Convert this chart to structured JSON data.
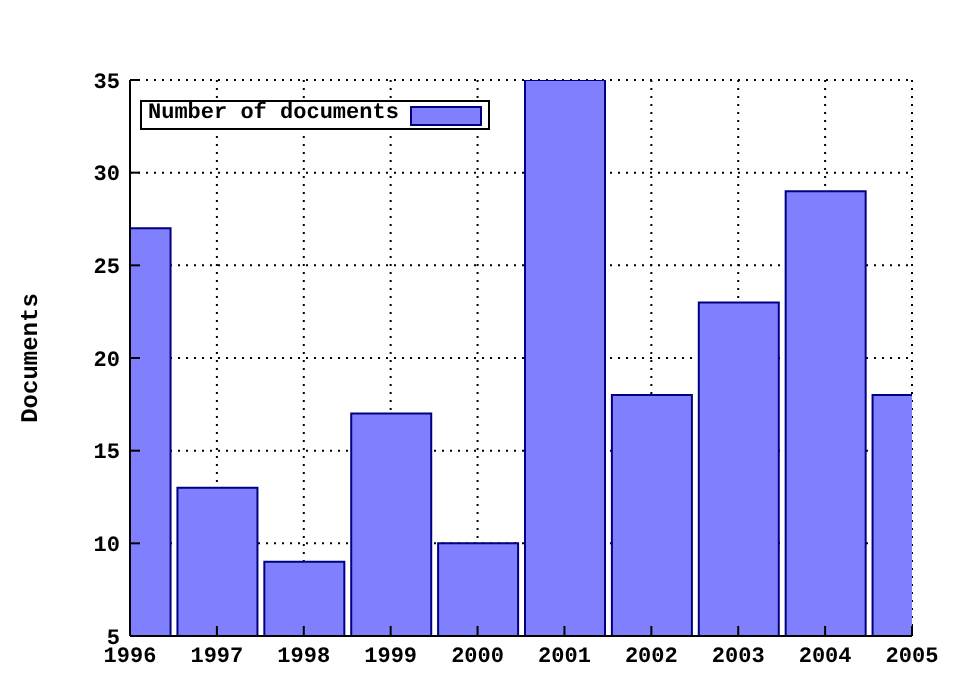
{
  "chart_data": {
    "type": "bar",
    "ylabel": "Documents",
    "x": [
      1996,
      1997,
      1998,
      1999,
      2000,
      2001,
      2002,
      2003,
      2004,
      2005
    ],
    "series": [
      {
        "name": "Number of documents",
        "color": "#8080ff",
        "values": [
          27,
          13,
          9,
          17,
          10,
          35,
          18,
          23,
          29,
          18
        ]
      }
    ],
    "xlim": [
      1996,
      2005
    ],
    "xticks": [
      1996,
      1997,
      1998,
      1999,
      2000,
      2001,
      2002,
      2003,
      2004,
      2005
    ],
    "ylim": [
      5,
      35
    ],
    "yticks": [
      5,
      10,
      15,
      20,
      25,
      30,
      35
    ],
    "grid": true,
    "legend": "top left"
  }
}
